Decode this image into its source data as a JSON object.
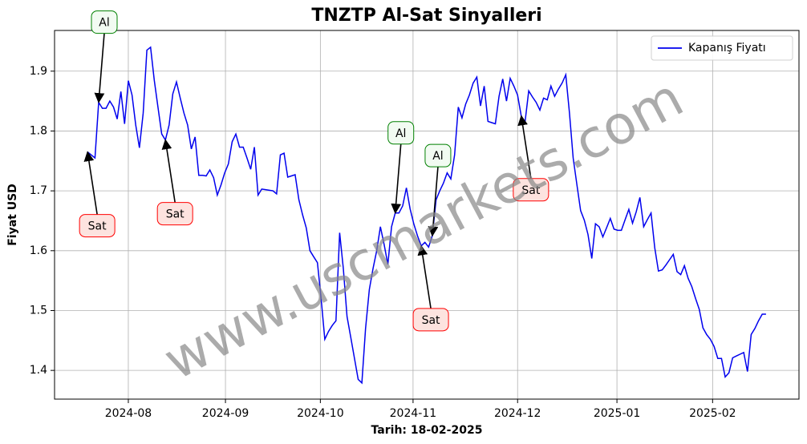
{
  "chart_data": {
    "type": "line",
    "title": "TNZTP Al-Sat Sinyalleri",
    "xlabel": "Tarih: 18-02-2025",
    "ylabel": "Fiyat USD",
    "watermark": "www.uscmarkets.com",
    "legend": "upper right",
    "grid": true,
    "series": [
      {
        "name": "Kapanış Fiyatı",
        "color": "#0000ee",
        "values": [
          1.765,
          1.76,
          1.755,
          1.848,
          1.838,
          1.838,
          1.85,
          1.84,
          1.82,
          1.866,
          1.812,
          1.884,
          1.86,
          1.81,
          1.772,
          1.83,
          1.935,
          1.94,
          1.885,
          1.84,
          1.795,
          1.785,
          1.81,
          1.862,
          1.882,
          1.855,
          1.83,
          1.81,
          1.77,
          1.79,
          1.726,
          1.726,
          1.725,
          1.735,
          1.722,
          1.693,
          1.71,
          1.73,
          1.745,
          1.782,
          1.795,
          1.773,
          1.773,
          1.755,
          1.736,
          1.773,
          1.693,
          1.703,
          1.702,
          1.701,
          1.7,
          1.695,
          1.76,
          1.763,
          1.723,
          1.725,
          1.727,
          1.685,
          1.66,
          1.638,
          1.6,
          1.59,
          1.58,
          1.52,
          1.452,
          1.465,
          1.475,
          1.483,
          1.63,
          1.57,
          1.49,
          1.455,
          1.42,
          1.385,
          1.379,
          1.47,
          1.535,
          1.57,
          1.6,
          1.64,
          1.61,
          1.577,
          1.64,
          1.663,
          1.663,
          1.675,
          1.705,
          1.67,
          1.645,
          1.625,
          1.608,
          1.614,
          1.606,
          1.625,
          1.685,
          1.7,
          1.713,
          1.73,
          1.72,
          1.76,
          1.84,
          1.822,
          1.845,
          1.86,
          1.88,
          1.89,
          1.842,
          1.875,
          1.816,
          1.814,
          1.812,
          1.858,
          1.887,
          1.85,
          1.888,
          1.875,
          1.86,
          1.825,
          1.815,
          1.867,
          1.857,
          1.848,
          1.835,
          1.855,
          1.852,
          1.875,
          1.858,
          1.87,
          1.88,
          1.894,
          1.83,
          1.755,
          1.71,
          1.667,
          1.651,
          1.627,
          1.587,
          1.645,
          1.64,
          1.623,
          1.638,
          1.654,
          1.636,
          1.634,
          1.634,
          1.652,
          1.669,
          1.646,
          1.665,
          1.689,
          1.64,
          1.652,
          1.663,
          1.605,
          1.566,
          1.568,
          1.576,
          1.585,
          1.594,
          1.565,
          1.56,
          1.575,
          1.554,
          1.54,
          1.52,
          1.502,
          1.471,
          1.46,
          1.452,
          1.44,
          1.42,
          1.42,
          1.389,
          1.396,
          1.421,
          1.424,
          1.427,
          1.43,
          1.398,
          1.46,
          1.47,
          1.483,
          1.494,
          1.494
        ]
      }
    ],
    "xlim": [
      -8.9,
      191.9
    ],
    "xticks": [
      {
        "value": 11,
        "label": "2024-08"
      },
      {
        "value": 37.2,
        "label": "2024-09"
      },
      {
        "value": 62.8,
        "label": "2024-10"
      },
      {
        "value": 87.8,
        "label": "2024-11"
      },
      {
        "value": 116,
        "label": "2024-12"
      },
      {
        "value": 142.8,
        "label": "2025-01"
      },
      {
        "value": 168.6,
        "label": "2025-02"
      }
    ],
    "ylim": [
      1.352,
      1.968
    ],
    "yticks": [
      1.4,
      1.5,
      1.6,
      1.7,
      1.8,
      1.9
    ],
    "annotations": [
      {
        "text": "Sat",
        "index": 0,
        "color": "red",
        "fill": "#fde3df"
      },
      {
        "text": "Al",
        "index": 3,
        "color": "green",
        "fill": "#f2fbf2"
      },
      {
        "text": "Sat",
        "index": 21,
        "color": "red",
        "fill": "#fde3df"
      },
      {
        "text": "Al",
        "index": 83,
        "color": "green",
        "fill": "#f2fbf2"
      },
      {
        "text": "Sat",
        "index": 90,
        "color": "red",
        "fill": "#fde3df"
      },
      {
        "text": "Al",
        "index": 93,
        "color": "green",
        "fill": "#f2fbf2"
      },
      {
        "text": "Sat",
        "index": 117,
        "color": "red",
        "fill": "#fde3df"
      }
    ]
  }
}
